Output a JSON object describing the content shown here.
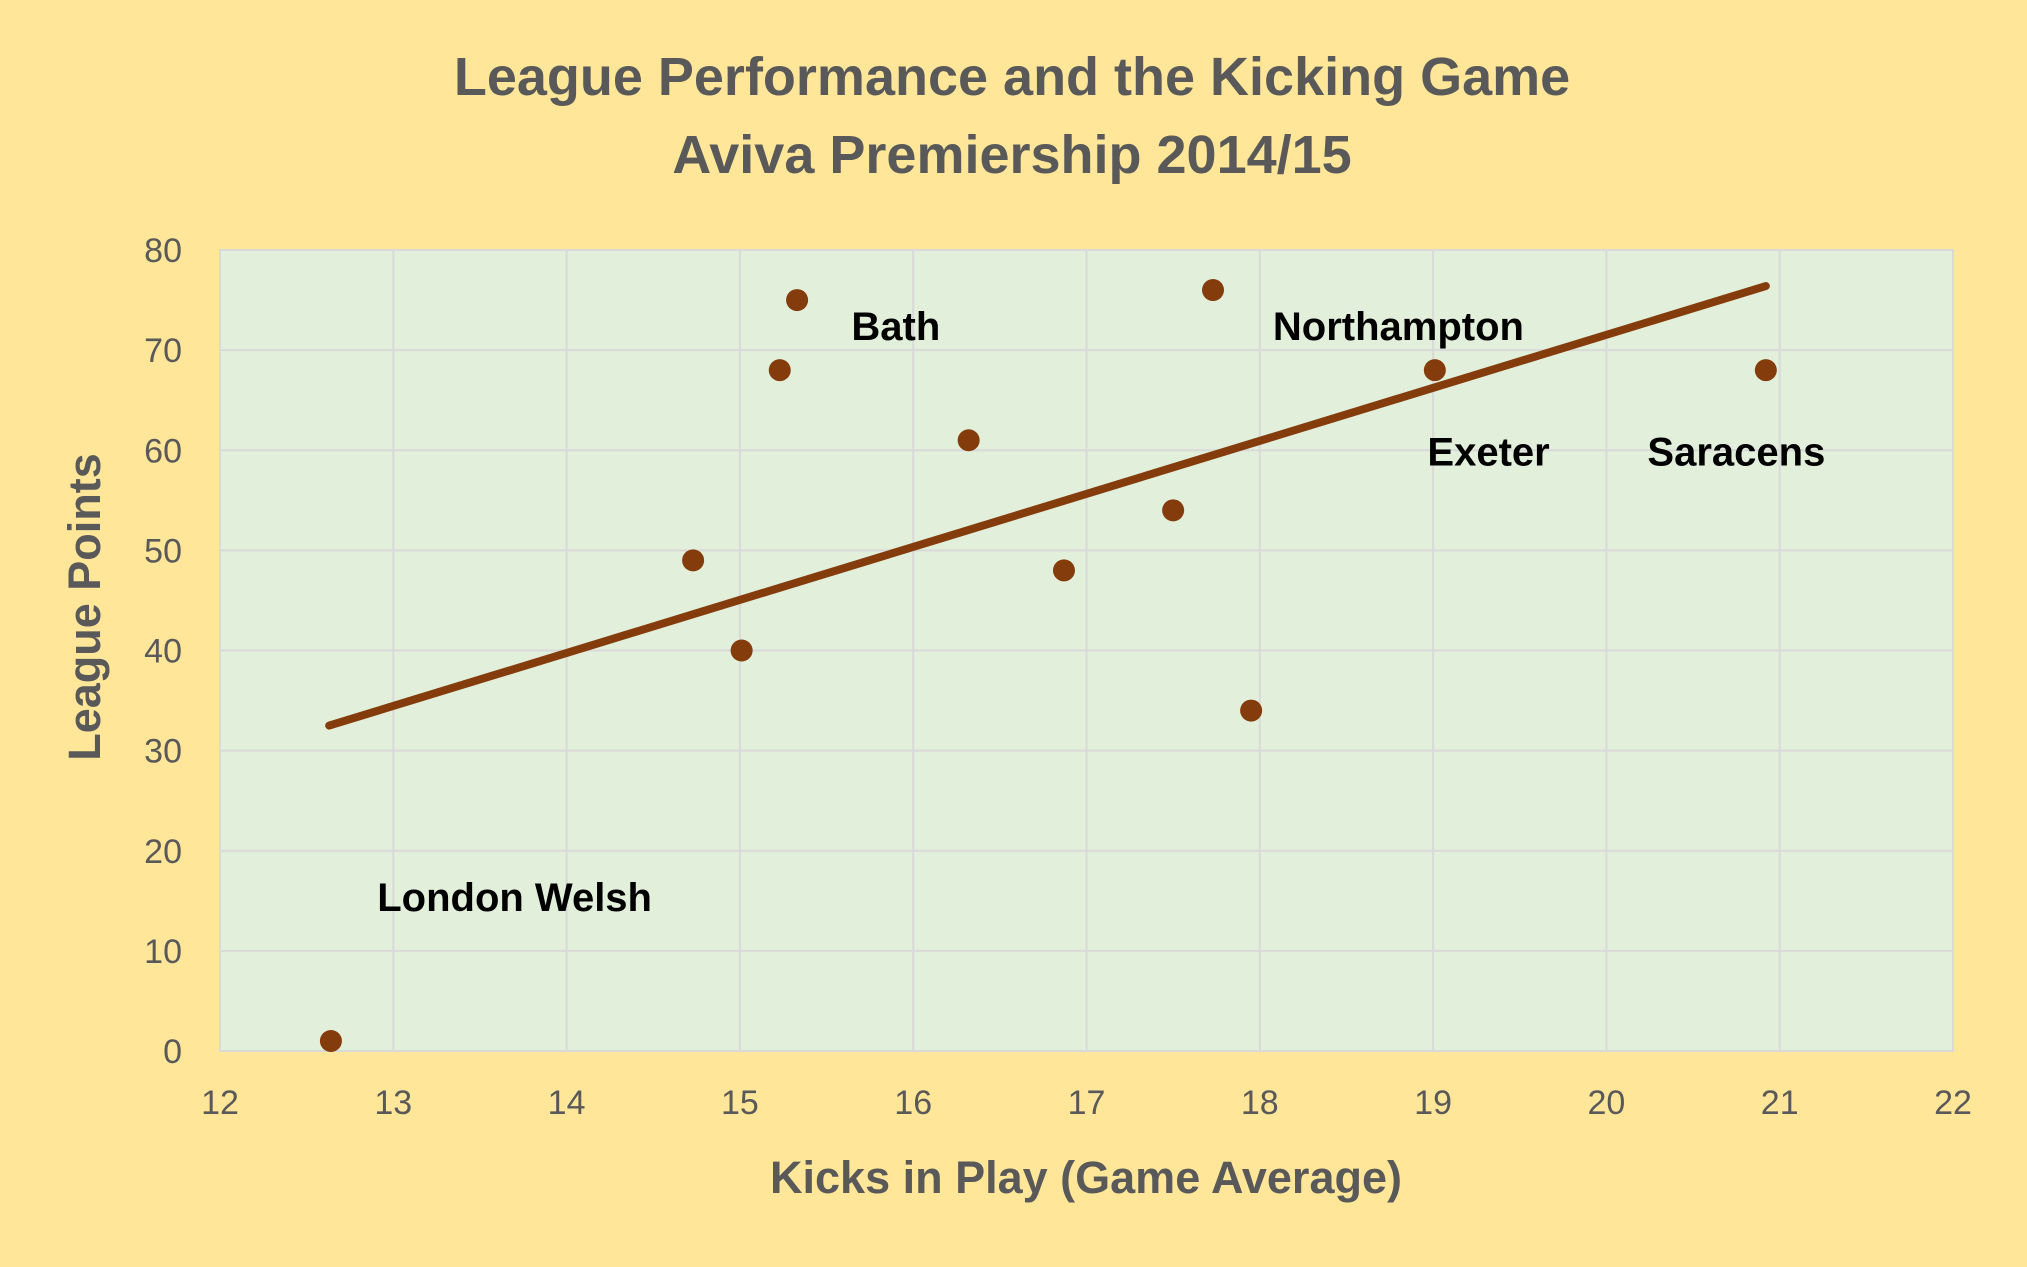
{
  "chart_data": {
    "type": "scatter",
    "title": "League Performance and the Kicking Game",
    "subtitle": "Aviva Premiership 2014/15",
    "xlabel": "Kicks in Play (Game Average)",
    "ylabel": "League Points",
    "xlim": [
      12,
      22
    ],
    "ylim": [
      0,
      80
    ],
    "xticks": [
      12,
      13,
      14,
      15,
      16,
      17,
      18,
      19,
      20,
      21,
      22
    ],
    "yticks": [
      0,
      10,
      20,
      30,
      40,
      50,
      60,
      70,
      80
    ],
    "grid": true,
    "points": [
      {
        "x": 12.64,
        "y": 1
      },
      {
        "x": 14.73,
        "y": 49
      },
      {
        "x": 15.01,
        "y": 40
      },
      {
        "x": 15.23,
        "y": 68
      },
      {
        "x": 15.33,
        "y": 75
      },
      {
        "x": 16.32,
        "y": 61
      },
      {
        "x": 16.87,
        "y": 48
      },
      {
        "x": 17.5,
        "y": 54
      },
      {
        "x": 17.73,
        "y": 76
      },
      {
        "x": 17.95,
        "y": 34
      },
      {
        "x": 19.01,
        "y": 68
      },
      {
        "x": 20.92,
        "y": 68
      }
    ],
    "trendline": {
      "x": [
        12.63,
        20.92
      ],
      "y": [
        32.5,
        76.4
      ]
    },
    "annotations": [
      {
        "text": "Bath",
        "x": 15.9,
        "y": 71
      },
      {
        "text": "Northampton",
        "x": 18.8,
        "y": 71
      },
      {
        "text": "Exeter",
        "x": 19.32,
        "y": 58.5
      },
      {
        "text": "Saracens",
        "x": 20.75,
        "y": 58.5
      },
      {
        "text": "London Welsh",
        "x": 13.7,
        "y": 14
      }
    ],
    "colors": {
      "background": "#FFE699",
      "plot_area": "#E2EFDA",
      "gridline": "#D9D9D9",
      "marker": "#843C0C",
      "trendline": "#843C0C",
      "title_text": "#595959",
      "label_text": "#000000"
    }
  }
}
